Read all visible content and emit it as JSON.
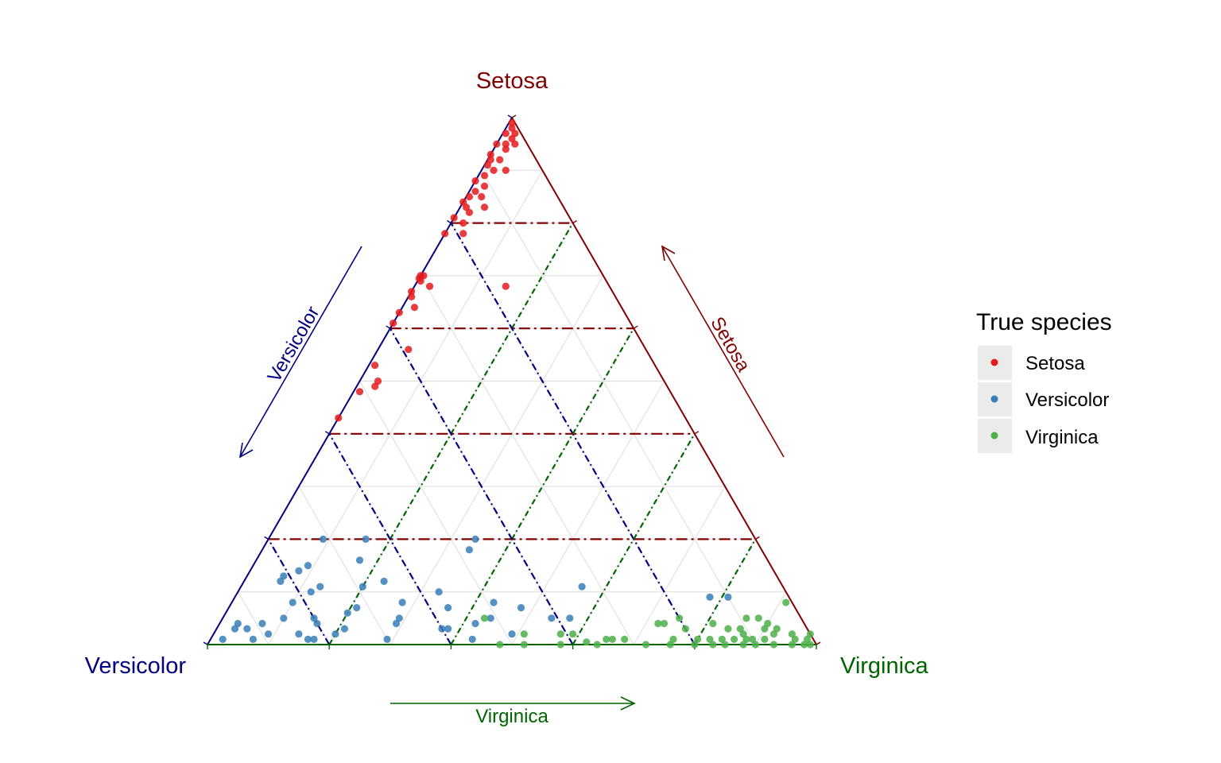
{
  "chart_data": {
    "type": "scatter",
    "subtype": "ternary",
    "vertices": {
      "top": "Setosa",
      "left": "Versicolor",
      "right": "Virginica"
    },
    "axis_arrows": {
      "left": "Versicolor",
      "right": "Setosa",
      "bottom": "Virginica"
    },
    "grid": true,
    "grid_step": 0.1,
    "boundary_lines_step": 0.2,
    "legend": {
      "title": "True species",
      "position": "right",
      "entries": [
        {
          "name": "Setosa",
          "color": "#e41a1c"
        },
        {
          "name": "Versicolor",
          "color": "#377eb8"
        },
        {
          "name": "Virginica",
          "color": "#4daf4a"
        }
      ]
    },
    "colors": {
      "setosa_axis": "#800000",
      "versicolor_axis": "#000080",
      "virginica_axis": "#006400",
      "grid": "#dddddd"
    },
    "series": [
      {
        "name": "Setosa",
        "points": [
          [
            0.99,
            0.005
          ],
          [
            0.98,
            0.01
          ],
          [
            0.97,
            0.02
          ],
          [
            0.97,
            0.005
          ],
          [
            0.96,
            0.02
          ],
          [
            0.95,
            0.015
          ],
          [
            0.95,
            0.03
          ],
          [
            0.95,
            0.0
          ],
          [
            0.94,
            0.02
          ],
          [
            0.93,
            0.0
          ],
          [
            0.92,
            0.02
          ],
          [
            0.92,
            0.005
          ],
          [
            0.91,
            0.005
          ],
          [
            0.9,
            0.02
          ],
          [
            0.9,
            0.04
          ],
          [
            0.89,
            0.01
          ],
          [
            0.88,
            0.0
          ],
          [
            0.87,
            0.02
          ],
          [
            0.86,
            0.01
          ],
          [
            0.85,
            0.005
          ],
          [
            0.85,
            0.025
          ],
          [
            0.84,
            0.0
          ],
          [
            0.83,
            0.01
          ],
          [
            0.83,
            0.04
          ],
          [
            0.82,
            0.02
          ],
          [
            0.81,
            0.0
          ],
          [
            0.8,
            0.02
          ],
          [
            0.78,
            0.0
          ],
          [
            0.78,
            0.03
          ],
          [
            0.7,
            0.0
          ],
          [
            0.7,
            0.005
          ],
          [
            0.695,
            0.0
          ],
          [
            0.69,
            0.005
          ],
          [
            0.68,
            0.025
          ],
          [
            0.68,
            0.15
          ],
          [
            0.67,
            0.0
          ],
          [
            0.66,
            0.005
          ],
          [
            0.64,
            0.02
          ],
          [
            0.63,
            0.0
          ],
          [
            0.61,
            0.0
          ],
          [
            0.56,
            0.05
          ],
          [
            0.53,
            0.01
          ],
          [
            0.5,
            0.03
          ],
          [
            0.49,
            0.03
          ],
          [
            0.48,
            0.01
          ],
          [
            0.43,
            0.0
          ]
        ]
      },
      {
        "name": "Versicolor",
        "points": [
          [
            0.2,
            0.09
          ],
          [
            0.2,
            0.16
          ],
          [
            0.2,
            0.34
          ],
          [
            0.16,
            0.17
          ],
          [
            0.18,
            0.34
          ],
          [
            0.15,
            0.09
          ],
          [
            0.14,
            0.08
          ],
          [
            0.13,
            0.06
          ],
          [
            0.12,
            0.23
          ],
          [
            0.12,
            0.06
          ],
          [
            0.11,
            0.13
          ],
          [
            0.11,
            0.2
          ],
          [
            0.1,
            0.12
          ],
          [
            0.1,
            0.33
          ],
          [
            0.08,
            0.1
          ],
          [
            0.08,
            0.28
          ],
          [
            0.08,
            0.43
          ],
          [
            0.07,
            0.21
          ],
          [
            0.07,
            0.36
          ],
          [
            0.07,
            0.48
          ],
          [
            0.06,
            0.2
          ],
          [
            0.05,
            0.1
          ],
          [
            0.05,
            0.29
          ],
          [
            0.05,
            0.44
          ],
          [
            0.05,
            0.15
          ],
          [
            0.05,
            0.54
          ],
          [
            0.05,
            0.57
          ],
          [
            0.04,
            0.03
          ],
          [
            0.04,
            0.07
          ],
          [
            0.04,
            0.16
          ],
          [
            0.04,
            0.29
          ],
          [
            0.04,
            0.42
          ],
          [
            0.03,
            0.05
          ],
          [
            0.03,
            0.03
          ],
          [
            0.03,
            0.21
          ],
          [
            0.03,
            0.37
          ],
          [
            0.03,
            0.38
          ],
          [
            0.02,
            0.09
          ],
          [
            0.02,
            0.2
          ],
          [
            0.02,
            0.49
          ],
          [
            0.02,
            0.14
          ],
          [
            0.01,
            0.02
          ],
          [
            0.01,
            0.07
          ],
          [
            0.01,
            0.16
          ],
          [
            0.01,
            0.29
          ],
          [
            0.01,
            0.43
          ],
          [
            0.01,
            0.17
          ],
          [
            0.09,
            0.81
          ],
          [
            0.09,
            0.78
          ],
          [
            0.11,
            0.56
          ]
        ]
      },
      {
        "name": "Virginica",
        "points": [
          [
            0.08,
            0.91
          ],
          [
            0.05,
            0.43
          ],
          [
            0.05,
            0.88
          ],
          [
            0.05,
            0.75
          ],
          [
            0.05,
            0.86
          ],
          [
            0.04,
            0.9
          ],
          [
            0.04,
            0.72
          ],
          [
            0.04,
            0.81
          ],
          [
            0.04,
            0.73
          ],
          [
            0.03,
            0.84
          ],
          [
            0.03,
            0.77
          ],
          [
            0.03,
            0.86
          ],
          [
            0.03,
            0.9
          ],
          [
            0.03,
            0.92
          ],
          [
            0.02,
            0.51
          ],
          [
            0.02,
            0.57
          ],
          [
            0.02,
            0.59
          ],
          [
            0.02,
            0.92
          ],
          [
            0.02,
            0.95
          ],
          [
            0.02,
            0.98
          ],
          [
            0.02,
            0.87
          ],
          [
            0.01,
            0.86
          ],
          [
            0.01,
            0.89
          ],
          [
            0.01,
            0.65
          ],
          [
            0.01,
            0.66
          ],
          [
            0.01,
            0.68
          ],
          [
            0.01,
            0.76
          ],
          [
            0.01,
            0.8
          ],
          [
            0.01,
            0.84
          ],
          [
            0.01,
            0.88
          ],
          [
            0.01,
            0.91
          ],
          [
            0.01,
            0.96
          ],
          [
            0.01,
            0.98
          ],
          [
            0.01,
            0.82
          ],
          [
            0.005,
            0.62
          ],
          [
            0.0,
            0.48
          ],
          [
            0.0,
            0.52
          ],
          [
            0.0,
            0.58
          ],
          [
            0.0,
            0.64
          ],
          [
            0.0,
            0.72
          ],
          [
            0.0,
            0.76
          ],
          [
            0.0,
            0.8
          ],
          [
            0.0,
            0.83
          ],
          [
            0.0,
            0.85
          ],
          [
            0.0,
            0.88
          ],
          [
            0.0,
            0.9
          ],
          [
            0.0,
            0.93
          ],
          [
            0.0,
            0.96
          ],
          [
            0.0,
            0.98
          ],
          [
            0.0,
            0.99
          ]
        ]
      }
    ]
  }
}
